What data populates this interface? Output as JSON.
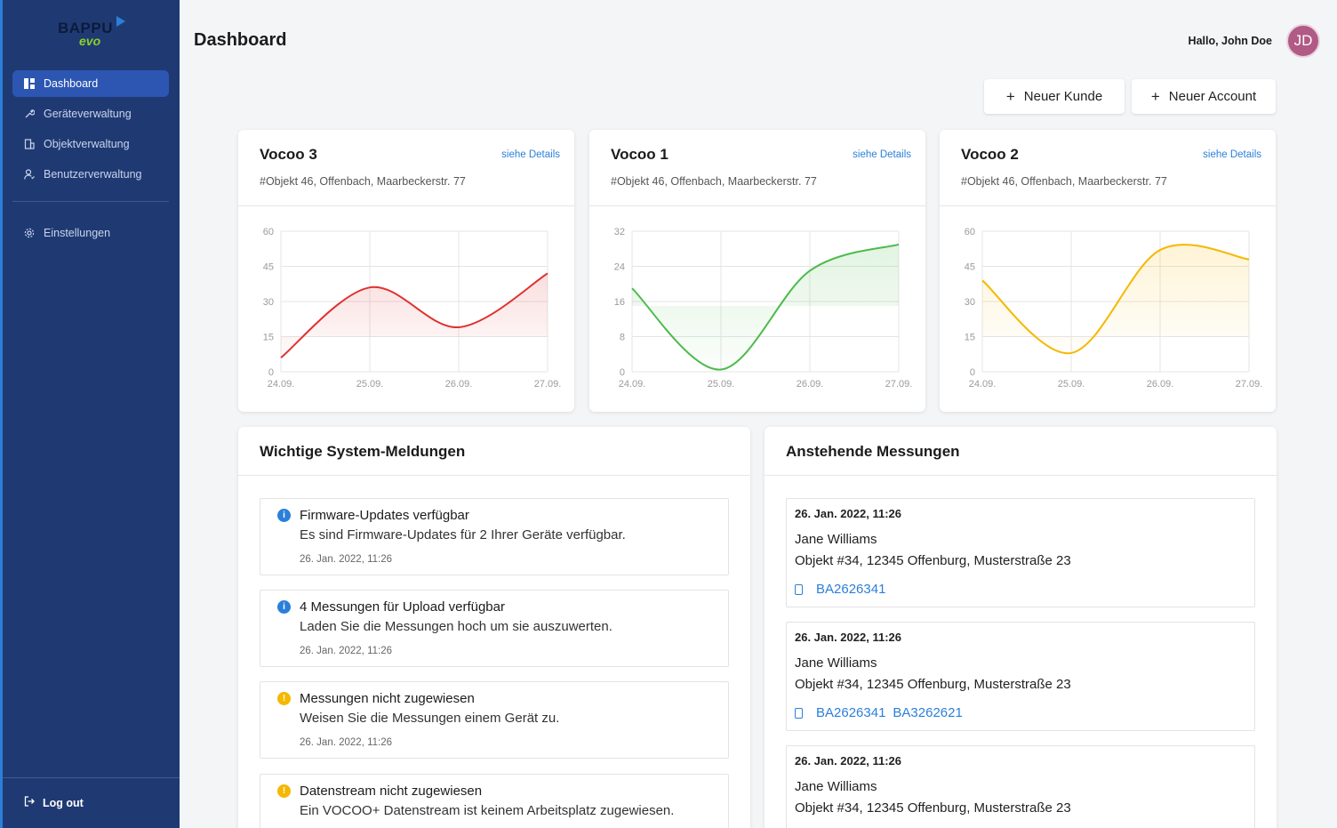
{
  "app": {
    "logo_text": "BAPPU",
    "logo_sub": "evo",
    "page_title": "Dashboard",
    "greeting": "Hallo, John Doe",
    "avatar_initials": "JD"
  },
  "sidebar": {
    "items": [
      {
        "label": "Dashboard",
        "icon": "dashboard-icon",
        "active": true
      },
      {
        "label": "Geräteverwaltung",
        "icon": "wrench-icon"
      },
      {
        "label": "Objektverwaltung",
        "icon": "building-icon"
      },
      {
        "label": "Benutzerverwaltung",
        "icon": "user-icon"
      }
    ],
    "settings": {
      "label": "Einstellungen",
      "icon": "gear-icon"
    },
    "logout": {
      "label": "Log out",
      "icon": "logout-icon"
    }
  },
  "actions": {
    "new_customer": "Neuer Kunde",
    "new_account": "Neuer Account"
  },
  "cards": [
    {
      "title": "Vocoo 3",
      "link": "siehe Details",
      "subtitle": "#Objekt 46, Offenbach, Maarbeckerstr. 77"
    },
    {
      "title": "Vocoo 1",
      "link": "siehe Details",
      "subtitle": "#Objekt 46, Offenbach, Maarbeckerstr. 77"
    },
    {
      "title": "Vocoo 2",
      "link": "siehe Details",
      "subtitle": "#Objekt 46, Offenbach, Maarbeckerstr. 77"
    }
  ],
  "chart_data": [
    {
      "type": "line",
      "categories": [
        "24.09.",
        "25.09.",
        "26.09.",
        "27.09."
      ],
      "values": [
        6,
        36,
        19,
        42
      ],
      "ylim": [
        0,
        60
      ],
      "yticks": [
        0,
        15,
        30,
        45,
        60
      ],
      "color": "#e03131",
      "grid": true
    },
    {
      "type": "line",
      "categories": [
        "24.09.",
        "25.09.",
        "26.09.",
        "27.09."
      ],
      "values": [
        19,
        0.5,
        23,
        29
      ],
      "ylim": [
        0,
        32
      ],
      "yticks": [
        0,
        8,
        16,
        24,
        32
      ],
      "color": "#4cbb4c",
      "grid": true
    },
    {
      "type": "line",
      "categories": [
        "24.09.",
        "25.09.",
        "26.09.",
        "27.09."
      ],
      "values": [
        39,
        8,
        52,
        48
      ],
      "ylim": [
        0,
        60
      ],
      "yticks": [
        0,
        15,
        30,
        45,
        60
      ],
      "color": "#f5b800",
      "grid": true
    }
  ],
  "messages_panel": {
    "title": "Wichtige System-Meldungen",
    "items": [
      {
        "kind": "info",
        "icon": "info-icon",
        "title": "Firmware-Updates verfügbar",
        "text": "Es sind Firmware-Updates für 2 Ihrer Geräte verfügbar.",
        "date": "26. Jan. 2022, 11:26"
      },
      {
        "kind": "info",
        "icon": "info-icon",
        "title": "4 Messungen für Upload verfügbar",
        "text": "Laden Sie die Messungen hoch um sie auszuwerten.",
        "date": "26. Jan. 2022, 11:26"
      },
      {
        "kind": "warn",
        "icon": "warning-icon",
        "title": "Messungen nicht zugewiesen",
        "text": "Weisen Sie die Messungen einem Gerät zu.",
        "date": "26. Jan. 2022, 11:26"
      },
      {
        "kind": "warn",
        "icon": "warning-icon",
        "title": "Datenstream nicht zugewiesen",
        "text": "Ein VOCOO+ Datenstream ist keinem Arbeitsplatz zugewiesen.",
        "date": ""
      }
    ]
  },
  "measurements_panel": {
    "title": "Anstehende Messungen",
    "items": [
      {
        "date": "26. Jan. 2022, 11:26",
        "name": "Jane Williams",
        "object": "Objekt #34, 12345 Offenburg, Musterstraße 23",
        "devices": [
          "BA2626341"
        ]
      },
      {
        "date": "26. Jan. 2022, 11:26",
        "name": "Jane Williams",
        "object": "Objekt #34, 12345 Offenburg, Musterstraße 23",
        "devices": [
          "BA2626341",
          "BA3262621"
        ]
      },
      {
        "date": "26. Jan. 2022, 11:26",
        "name": "Jane Williams",
        "object": "Objekt #34, 12345 Offenburg, Musterstraße 23",
        "devices": []
      }
    ]
  }
}
